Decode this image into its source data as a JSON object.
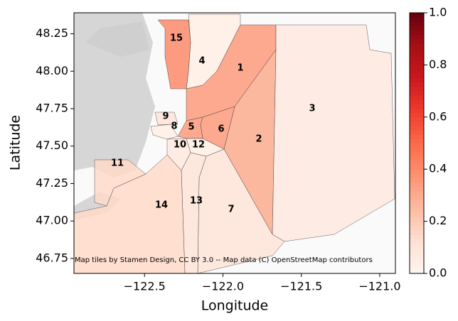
{
  "chart_data": {
    "type": "choropleth",
    "xlabel": "Longitude",
    "ylabel": "Latitude",
    "xlim": [
      -122.95,
      -120.9
    ],
    "ylim": [
      46.65,
      48.39
    ],
    "xticks": [
      {
        "value": -122.5,
        "label": "−122.5"
      },
      {
        "value": -122.0,
        "label": "−122.0"
      },
      {
        "value": -121.5,
        "label": "−121.5"
      },
      {
        "value": -121.0,
        "label": "−121.0"
      }
    ],
    "yticks": [
      46.75,
      {
        "value": 47.0,
        "label": "47.00"
      },
      47.25,
      {
        "value": 47.5,
        "label": "47.50"
      },
      47.75,
      {
        "value": 48.0,
        "label": "48.00"
      },
      48.25
    ],
    "colormap": "Reds",
    "colorbar_lim": [
      0,
      1
    ],
    "colorbar_ticks": [
      {
        "value": 0,
        "label": "0.0"
      },
      0.2,
      0.4,
      0.6,
      0.8,
      {
        "value": 1,
        "label": "1.0"
      }
    ],
    "attribution": "Map tiles by Stamen Design, CC BY 3.0 -- Map data (C) OpenStreetMap contributors",
    "regions": [
      {
        "label": "1",
        "value": 0.35
      },
      {
        "label": "2",
        "value": 0.3
      },
      {
        "label": "3",
        "value": 0.07
      },
      {
        "label": "4",
        "value": 0.05
      },
      {
        "label": "5",
        "value": 0.35
      },
      {
        "label": "6",
        "value": 0.35
      },
      {
        "label": "7",
        "value": 0.1
      },
      {
        "label": "8",
        "value": 0.05
      },
      {
        "label": "9",
        "value": 0.1
      },
      {
        "label": "10",
        "value": 0.08
      },
      {
        "label": "11",
        "value": 0.15
      },
      {
        "label": "12",
        "value": 0.05
      },
      {
        "label": "13",
        "value": 0.1
      },
      {
        "label": "14",
        "value": 0.15
      },
      {
        "label": "15",
        "value": 0.4
      }
    ]
  }
}
